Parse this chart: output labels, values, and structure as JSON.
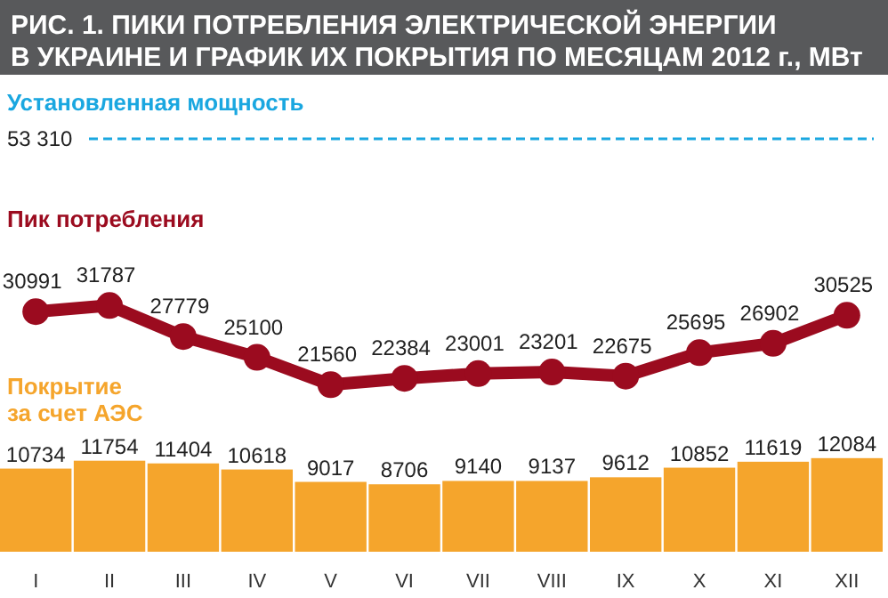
{
  "chart_data": {
    "type": "bar",
    "title": "РИС. 1. ПИКИ ПОТРЕБЛЕНИЯ ЭЛЕКТРИЧЕСКОЙ ЭНЕРГИИ В УКРАИНЕ И ГРАФИК ИХ ПОКРЫТИЯ ПО МЕСЯЦАМ 2012 г., МВт",
    "categories": [
      "I",
      "II",
      "III",
      "IV",
      "V",
      "VI",
      "VII",
      "VIII",
      "IX",
      "X",
      "XI",
      "XII"
    ],
    "series": [
      {
        "name": "Покрытие за счет АЭС",
        "color": "#f5a52c",
        "values": [
          10734,
          11754,
          11404,
          10618,
          9017,
          8706,
          9140,
          9137,
          9612,
          10852,
          11619,
          12084
        ]
      },
      {
        "name": "Пик потребления",
        "type": "line",
        "color": "#9b0b1f",
        "values": [
          30991,
          31787,
          27779,
          25100,
          21560,
          22384,
          23001,
          23201,
          22675,
          25695,
          26902,
          30525
        ]
      }
    ],
    "ref_lines": [
      {
        "axis": "y",
        "value": 53310,
        "label": "Установленная мощность",
        "color": "#1aa7e0",
        "line_style": "dashed"
      }
    ],
    "annotations": [
      "53 310"
    ],
    "data_labels": true,
    "marker": "circle",
    "tick_labels": "x"
  }
}
